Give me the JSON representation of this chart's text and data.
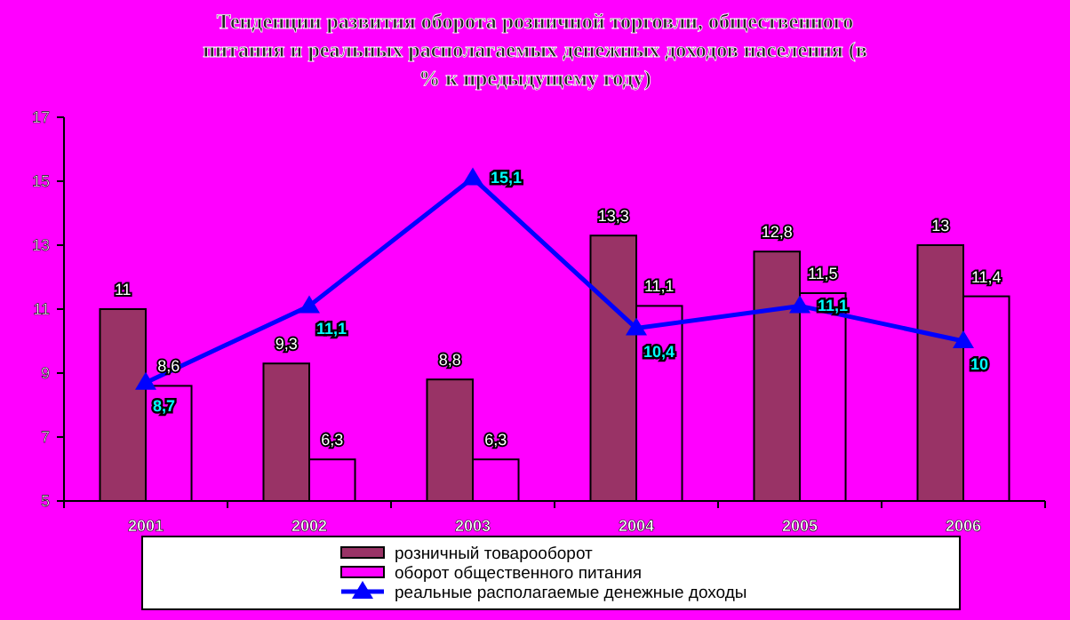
{
  "chart_data": {
    "type": "bar",
    "title": "Тенденции развития оборота розничной торговли, общественного питания и реальных располагаемых денежных доходов населения (в % к предыдущему году)",
    "categories": [
      "2001",
      "2002",
      "2003",
      "2004",
      "2005",
      "2006"
    ],
    "series": [
      {
        "name": "розничный товарооборот",
        "color": "#993366",
        "values": [
          11,
          9.3,
          8.8,
          13.3,
          12.8,
          13
        ],
        "value_labels": [
          "11",
          "9,3",
          "8,8",
          "13,3",
          "12,8",
          "13"
        ]
      },
      {
        "name": "оборот общественного питания",
        "color": "#ff00ff",
        "values": [
          8.6,
          6.3,
          6.3,
          11.1,
          11.5,
          11.4
        ],
        "value_labels": [
          "8,6",
          "6,3",
          "6,3",
          "11,1",
          "11,5",
          "11,4"
        ]
      },
      {
        "name": "реальные располагаемые денежные доходы",
        "type": "line",
        "color": "#0000ff",
        "marker": "triangle",
        "values": [
          8.7,
          11.1,
          15.1,
          10.4,
          11.1,
          10
        ],
        "value_labels": [
          "8,7",
          "11,1",
          "15,1",
          "10,4",
          "11,1",
          "10"
        ]
      }
    ],
    "ylim": [
      5,
      17
    ],
    "yticks": [
      5,
      7,
      9,
      11,
      13,
      15,
      17
    ],
    "grid": false,
    "legend": "bottom"
  }
}
